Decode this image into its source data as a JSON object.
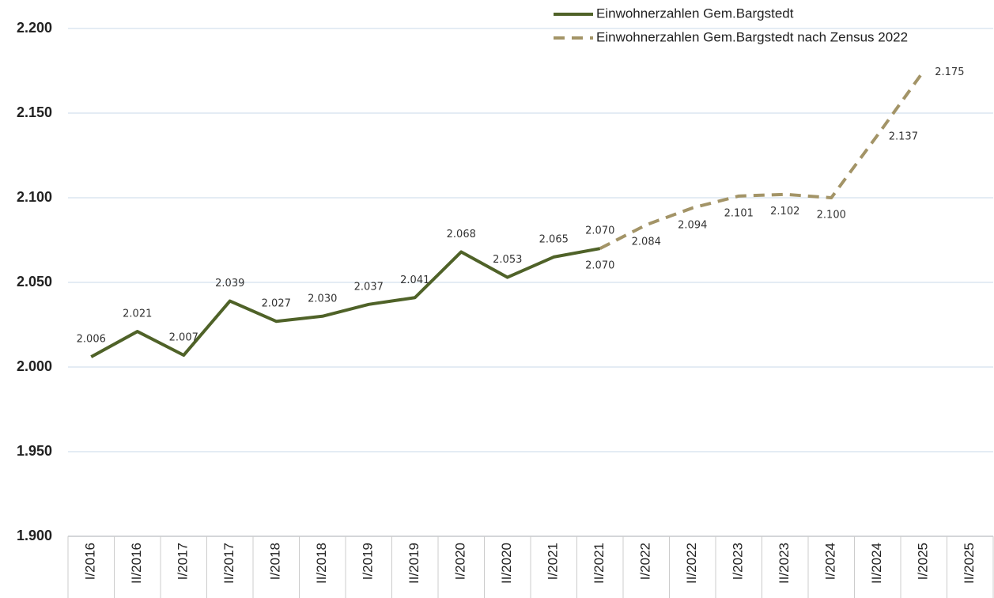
{
  "chart_data": {
    "type": "line",
    "categories": [
      "I/2016",
      "II/2016",
      "I/2017",
      "II/2017",
      "I/2018",
      "II/2018",
      "I/2019",
      "II/2019",
      "I/2020",
      "II/2020",
      "I/2021",
      "II/2021",
      "I/2022",
      "II/2022",
      "I/2023",
      "II/2023",
      "I/2024",
      "II/2024",
      "I/2025",
      "II/2025"
    ],
    "series": [
      {
        "name": "Einwohnerzahlen Gem.Bargstedt",
        "color": "#4f6228",
        "dash": false,
        "values": [
          2006,
          2021,
          2007,
          2039,
          2027,
          2030,
          2037,
          2041,
          2068,
          2053,
          2065,
          2070,
          null,
          null,
          null,
          null,
          null,
          null,
          null,
          null
        ],
        "value_labels": [
          "2.006",
          "2.021",
          "2.007",
          "2.039",
          "2.027",
          "2.030",
          "2.037",
          "2.041",
          "2.068",
          "2.053",
          "2.065",
          "2.070",
          null,
          null,
          null,
          null,
          null,
          null,
          null,
          null
        ]
      },
      {
        "name": "Einwohnerzahlen Gem.Bargstedt nach Zensus 2022",
        "color": "#a39467",
        "dash": true,
        "values": [
          null,
          null,
          null,
          null,
          null,
          null,
          null,
          null,
          null,
          null,
          null,
          2070,
          2084,
          2094,
          2101,
          2102,
          2100,
          2137,
          2175,
          null
        ],
        "value_labels": [
          null,
          null,
          null,
          null,
          null,
          null,
          null,
          null,
          null,
          null,
          null,
          "2.070",
          "2.084",
          "2.094",
          "2.101",
          "2.102",
          "2.100",
          "2.137",
          "2.175",
          null
        ]
      }
    ],
    "ylim": [
      1900,
      2200
    ],
    "yticks": [
      {
        "value": 1900,
        "label": "1.900"
      },
      {
        "value": 1950,
        "label": "1.950"
      },
      {
        "value": 2000,
        "label": "2.000"
      },
      {
        "value": 2050,
        "label": "2.050"
      },
      {
        "value": 2100,
        "label": "2.100"
      },
      {
        "value": 2150,
        "label": "2.150"
      },
      {
        "value": 2200,
        "label": "2.200"
      }
    ],
    "grid": true,
    "legend": "top-right"
  }
}
